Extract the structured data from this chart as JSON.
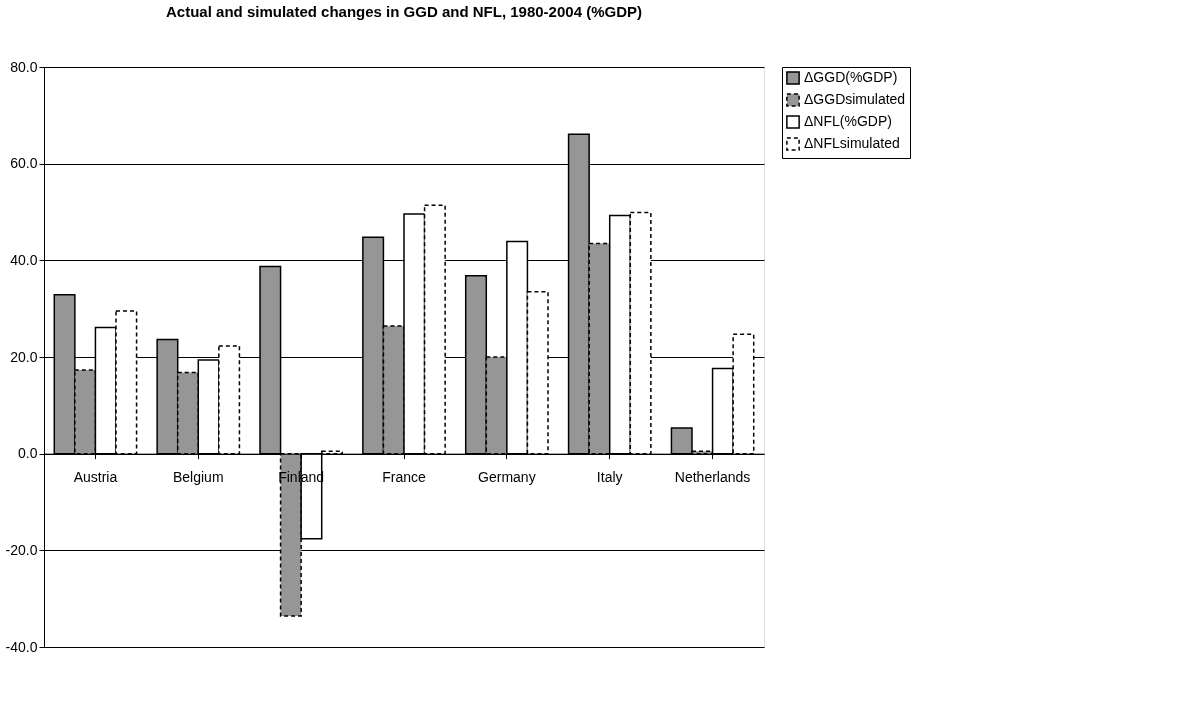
{
  "chart_data": {
    "type": "bar",
    "title": "Actual and simulated changes in GGD and NFL, 1980-2004 (%GDP)",
    "categories": [
      "Austria",
      "Belgium",
      "Finland",
      "France",
      "Germany",
      "Italy",
      "Netherlands"
    ],
    "series": [
      {
        "name": "ΔGGD(%GDP)",
        "color": "#969696",
        "line_style": "solid",
        "values": [
          32.9,
          23.6,
          38.7,
          44.8,
          36.8,
          66.1,
          5.3
        ]
      },
      {
        "name": "ΔGGDsimulated",
        "color": "#969696",
        "line_style": "dashed",
        "values": [
          17.3,
          16.8,
          -33.6,
          26.4,
          20.0,
          43.5,
          0.5
        ]
      },
      {
        "name": "ΔNFL(%GDP)",
        "color": "#ffffff",
        "line_style": "solid",
        "values": [
          26.1,
          19.4,
          -17.6,
          49.6,
          43.9,
          49.3,
          17.6
        ]
      },
      {
        "name": "ΔNFLsimulated",
        "color": "#ffffff",
        "line_style": "dashed",
        "values": [
          29.5,
          22.3,
          0.5,
          51.4,
          33.5,
          49.9,
          24.7
        ]
      }
    ],
    "ylim": [
      -40,
      80
    ],
    "yticks": [
      {
        "value": -40,
        "label": "-40.0"
      },
      {
        "value": -20,
        "label": "-20.0"
      },
      {
        "value": 0,
        "label": "0.0"
      },
      {
        "value": 20,
        "label": "20.0"
      },
      {
        "value": 40,
        "label": "40.0"
      },
      {
        "value": 60,
        "label": "60.0"
      },
      {
        "value": 80,
        "label": "80.0"
      }
    ],
    "grid": "y",
    "legend": "right"
  }
}
